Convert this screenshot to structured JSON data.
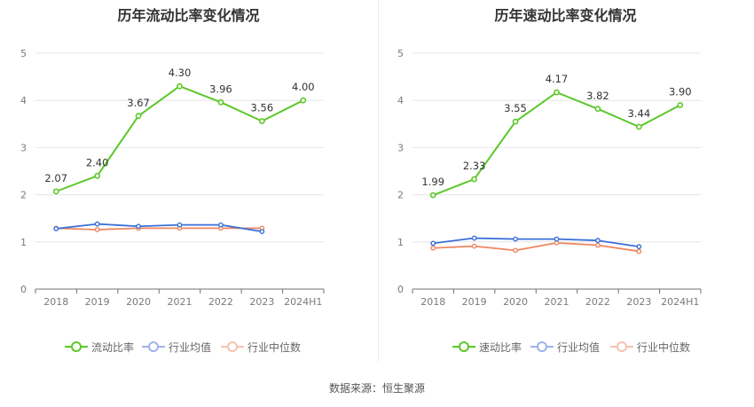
{
  "source_text": "数据来源：恒生聚源",
  "colors": {
    "company": "#5cc829",
    "industry_avg": "#3a6fd8",
    "industry_median": "#f08660"
  },
  "chart_data": [
    {
      "type": "line",
      "title": "历年流动比率变化情况",
      "categories": [
        "2018",
        "2019",
        "2020",
        "2021",
        "2022",
        "2023",
        "2024H1"
      ],
      "ylim": [
        0,
        5
      ],
      "yticks": [
        "0",
        "1",
        "2",
        "3",
        "4",
        "5"
      ],
      "grid": true,
      "legend_position": "bottom",
      "series": [
        {
          "name": "流动比率",
          "color": "#5cc829",
          "values": [
            2.07,
            2.4,
            3.67,
            4.3,
            3.96,
            3.56,
            4.0
          ],
          "labels": [
            "2.07",
            "2.40",
            "3.67",
            "4.30",
            "3.96",
            "3.56",
            "4.00"
          ]
        },
        {
          "name": "行业均值",
          "color": "#3a6fd8",
          "values": [
            1.28,
            1.38,
            1.33,
            1.36,
            1.36,
            1.22,
            null
          ]
        },
        {
          "name": "行业中位数",
          "color": "#f08660",
          "values": [
            1.29,
            1.26,
            1.29,
            1.29,
            1.29,
            1.29,
            null
          ]
        }
      ]
    },
    {
      "type": "line",
      "title": "历年速动比率变化情况",
      "categories": [
        "2018",
        "2019",
        "2020",
        "2021",
        "2022",
        "2023",
        "2024H1"
      ],
      "ylim": [
        0,
        5
      ],
      "yticks": [
        "0",
        "1",
        "2",
        "3",
        "4",
        "5"
      ],
      "grid": true,
      "legend_position": "bottom",
      "series": [
        {
          "name": "速动比率",
          "color": "#5cc829",
          "values": [
            1.99,
            2.33,
            3.55,
            4.17,
            3.82,
            3.44,
            3.9
          ],
          "labels": [
            "1.99",
            "2.33",
            "3.55",
            "4.17",
            "3.82",
            "3.44",
            "3.90"
          ]
        },
        {
          "name": "行业均值",
          "color": "#3a6fd8",
          "values": [
            0.97,
            1.08,
            1.06,
            1.06,
            1.03,
            0.9,
            null
          ]
        },
        {
          "name": "行业中位数",
          "color": "#f08660",
          "values": [
            0.87,
            0.91,
            0.82,
            0.98,
            0.93,
            0.8,
            null
          ]
        }
      ]
    }
  ]
}
